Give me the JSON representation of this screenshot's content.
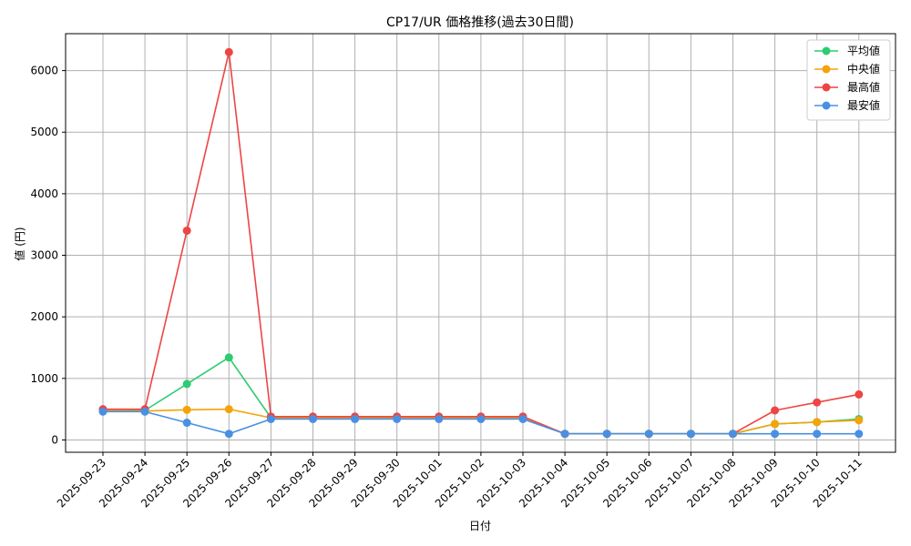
{
  "chart_data": {
    "type": "line",
    "title": "CP17/UR 価格推移(過去30日間)",
    "xlabel": "日付",
    "ylabel": "値 (円)",
    "categories": [
      "2025-09-23",
      "2025-09-24",
      "2025-09-25",
      "2025-09-26",
      "2025-09-27",
      "2025-09-28",
      "2025-09-29",
      "2025-09-30",
      "2025-10-01",
      "2025-10-02",
      "2025-10-03",
      "2025-10-04",
      "2025-10-05",
      "2025-10-06",
      "2025-10-07",
      "2025-10-08",
      "2025-10-09",
      "2025-10-10",
      "2025-10-11"
    ],
    "ylim": [
      -200,
      6600
    ],
    "yticks": [
      0,
      1000,
      2000,
      3000,
      4000,
      5000,
      6000
    ],
    "grid": true,
    "legend_position": "top-right",
    "series": [
      {
        "name": "平均値",
        "color": "#2ecc71",
        "values": [
          480,
          480,
          910,
          1340,
          360,
          360,
          360,
          360,
          360,
          360,
          360,
          100,
          100,
          100,
          100,
          100,
          260,
          290,
          340
        ]
      },
      {
        "name": "中央値",
        "color": "#f5a30a",
        "values": [
          480,
          470,
          490,
          500,
          360,
          360,
          360,
          360,
          360,
          360,
          360,
          100,
          100,
          100,
          100,
          100,
          260,
          290,
          320
        ]
      },
      {
        "name": "最高値",
        "color": "#ef4444",
        "values": [
          500,
          500,
          3400,
          6300,
          380,
          380,
          380,
          380,
          380,
          380,
          380,
          100,
          100,
          100,
          100,
          100,
          480,
          610,
          740
        ]
      },
      {
        "name": "最安値",
        "color": "#4a90e2",
        "values": [
          460,
          460,
          280,
          100,
          340,
          340,
          340,
          340,
          340,
          340,
          340,
          100,
          100,
          100,
          100,
          100,
          100,
          100,
          100
        ]
      }
    ]
  }
}
